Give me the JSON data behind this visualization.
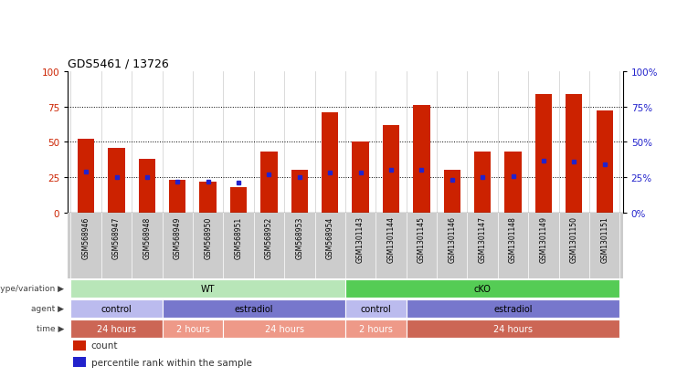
{
  "title": "GDS5461 / 13726",
  "samples": [
    "GSM568946",
    "GSM568947",
    "GSM568948",
    "GSM568949",
    "GSM568950",
    "GSM568951",
    "GSM568952",
    "GSM568953",
    "GSM568954",
    "GSM1301143",
    "GSM1301144",
    "GSM1301145",
    "GSM1301146",
    "GSM1301147",
    "GSM1301148",
    "GSM1301149",
    "GSM1301150",
    "GSM1301151"
  ],
  "bar_heights": [
    52,
    46,
    38,
    23,
    22,
    18,
    43,
    30,
    71,
    50,
    62,
    76,
    30,
    43,
    43,
    84,
    84,
    72
  ],
  "blue_markers": [
    29,
    25,
    25,
    22,
    22,
    21,
    27,
    25,
    28,
    28,
    30,
    30,
    23,
    25,
    26,
    37,
    36,
    34
  ],
  "bar_color": "#cc2200",
  "blue_color": "#2222cc",
  "ylim": [
    0,
    100
  ],
  "yticks": [
    0,
    25,
    50,
    75,
    100
  ],
  "annotation_rows": [
    {
      "label": "genotype/variation",
      "segments": [
        {
          "text": "WT",
          "start": 0,
          "end": 9,
          "color": "#b8e6b8",
          "text_color": "#000000"
        },
        {
          "text": "cKO",
          "start": 9,
          "end": 18,
          "color": "#55cc55",
          "text_color": "#000000"
        }
      ]
    },
    {
      "label": "agent",
      "segments": [
        {
          "text": "control",
          "start": 0,
          "end": 3,
          "color": "#bbbbee",
          "text_color": "#000000"
        },
        {
          "text": "estradiol",
          "start": 3,
          "end": 9,
          "color": "#7777cc",
          "text_color": "#000000"
        },
        {
          "text": "control",
          "start": 9,
          "end": 11,
          "color": "#bbbbee",
          "text_color": "#000000"
        },
        {
          "text": "estradiol",
          "start": 11,
          "end": 18,
          "color": "#7777cc",
          "text_color": "#000000"
        }
      ]
    },
    {
      "label": "time",
      "segments": [
        {
          "text": "24 hours",
          "start": 0,
          "end": 3,
          "color": "#cc6655",
          "text_color": "#ffffff"
        },
        {
          "text": "2 hours",
          "start": 3,
          "end": 5,
          "color": "#ee9988",
          "text_color": "#ffffff"
        },
        {
          "text": "24 hours",
          "start": 5,
          "end": 9,
          "color": "#ee9988",
          "text_color": "#ffffff"
        },
        {
          "text": "2 hours",
          "start": 9,
          "end": 11,
          "color": "#ee9988",
          "text_color": "#ffffff"
        },
        {
          "text": "24 hours",
          "start": 11,
          "end": 18,
          "color": "#cc6655",
          "text_color": "#ffffff"
        }
      ]
    }
  ],
  "legend": [
    {
      "color": "#cc2200",
      "label": "count"
    },
    {
      "color": "#2222cc",
      "label": "percentile rank within the sample"
    }
  ],
  "xlabel_bg": "#cccccc",
  "left_label_color": "#cc2200",
  "right_label_color": "#2222cc"
}
